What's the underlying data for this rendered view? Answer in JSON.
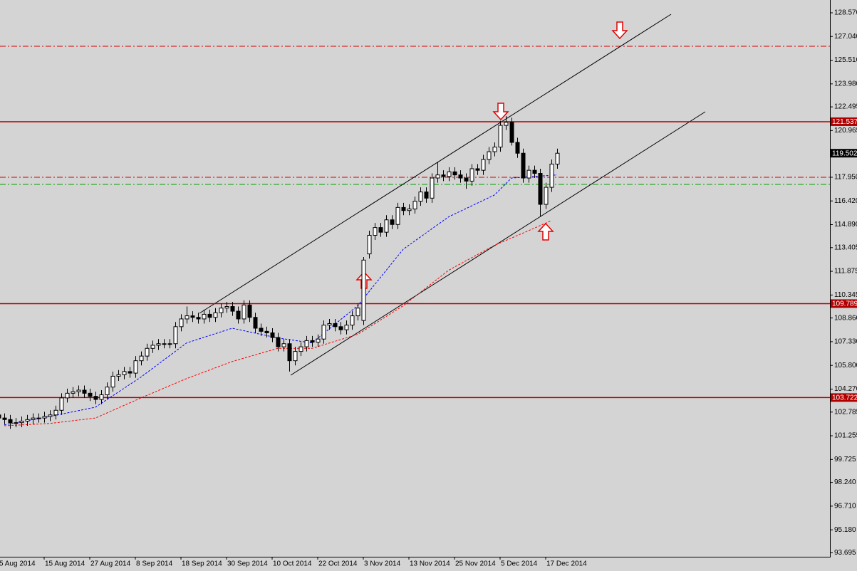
{
  "chart_data": {
    "type": "candlestick",
    "categories": [
      "5 Aug 2014",
      null,
      null,
      null,
      null,
      null,
      null,
      null,
      "15 Aug 2014",
      null,
      null,
      null,
      null,
      null,
      null,
      null,
      "27 Aug 2014",
      null,
      null,
      null,
      null,
      null,
      null,
      null,
      "8 Sep 2014",
      null,
      null,
      null,
      null,
      null,
      null,
      null,
      "18 Sep 2014",
      null,
      null,
      null,
      null,
      null,
      null,
      null,
      "30 Sep 2014",
      null,
      null,
      null,
      null,
      null,
      null,
      null,
      "10 Oct 2014",
      null,
      null,
      null,
      null,
      null,
      null,
      null,
      "22 Oct 2014",
      null,
      null,
      null,
      null,
      null,
      null,
      null,
      "3 Nov 2014",
      null,
      null,
      null,
      null,
      null,
      null,
      null,
      "13 Nov 2014",
      null,
      null,
      null,
      null,
      null,
      null,
      null,
      "25 Nov 2014",
      null,
      null,
      null,
      null,
      null,
      null,
      null,
      "5 Dec 2014",
      null,
      null,
      null,
      null,
      null,
      null,
      null,
      "17 Dec 2014",
      null,
      null
    ],
    "open": [
      102.6,
      102.4,
      102.3,
      102.1,
      102.1,
      102.2,
      102.3,
      102.4,
      102.4,
      102.5,
      102.6,
      102.9,
      103.7,
      104.0,
      104.1,
      104.2,
      104.0,
      103.8,
      103.6,
      103.9,
      104.4,
      105.1,
      105.2,
      105.4,
      105.3,
      106.1,
      106.4,
      106.9,
      107.1,
      107.2,
      107.2,
      107.2,
      108.3,
      108.8,
      109.0,
      108.9,
      108.8,
      109.1,
      108.9,
      109.2,
      109.5,
      109.6,
      109.3,
      108.8,
      109.7,
      108.9,
      108.2,
      108.0,
      107.9,
      107.6,
      107.0,
      107.2,
      106.1,
      106.7,
      107.0,
      107.4,
      107.3,
      107.5,
      108.4,
      108.5,
      108.3,
      108.1,
      108.4,
      109.0,
      108.7,
      113.0,
      114.2,
      114.7,
      114.4,
      115.2,
      114.9,
      116.0,
      115.8,
      115.9,
      116.4,
      117.0,
      116.6,
      117.9,
      118.1,
      118.0,
      118.3,
      118.1,
      117.9,
      117.7,
      118.5,
      118.4,
      119.1,
      119.6,
      119.9,
      121.3,
      121.5,
      120.2,
      119.5,
      117.9,
      118.4,
      118.2,
      116.2,
      117.3,
      118.8
    ],
    "high": [
      102.9,
      102.7,
      102.6,
      102.4,
      102.5,
      102.6,
      102.7,
      102.7,
      102.8,
      102.9,
      103.2,
      104.0,
      104.3,
      104.4,
      104.5,
      104.5,
      104.3,
      104.1,
      104.2,
      104.7,
      105.4,
      105.5,
      105.7,
      105.7,
      106.4,
      106.7,
      107.2,
      107.4,
      107.5,
      107.5,
      107.5,
      108.6,
      109.1,
      109.6,
      109.3,
      109.2,
      109.4,
      109.4,
      109.5,
      109.8,
      109.9,
      109.9,
      109.6,
      110.0,
      110.0,
      109.2,
      108.5,
      108.3,
      108.2,
      107.9,
      107.5,
      107.5,
      107.0,
      107.3,
      107.7,
      107.7,
      107.8,
      108.7,
      108.8,
      108.8,
      108.6,
      108.7,
      109.3,
      109.8,
      112.8,
      114.5,
      115.0,
      115.0,
      115.5,
      115.5,
      116.3,
      116.3,
      116.2,
      116.7,
      117.3,
      117.3,
      118.2,
      118.9,
      118.4,
      118.6,
      118.6,
      118.4,
      118.2,
      118.8,
      118.8,
      119.4,
      119.9,
      120.2,
      121.6,
      121.9,
      121.8,
      120.5,
      119.8,
      118.7,
      118.7,
      118.5,
      117.6,
      119.1,
      119.8
    ],
    "low": [
      102.1,
      102.0,
      101.7,
      101.8,
      101.8,
      101.9,
      102.0,
      102.1,
      102.1,
      102.2,
      102.3,
      102.6,
      103.4,
      103.7,
      103.8,
      103.7,
      103.5,
      103.3,
      103.3,
      103.6,
      104.1,
      104.8,
      104.9,
      105.0,
      105.0,
      105.8,
      106.1,
      106.6,
      106.8,
      106.9,
      106.9,
      106.9,
      108.0,
      108.5,
      108.6,
      108.5,
      108.5,
      108.6,
      108.6,
      108.9,
      109.2,
      109.0,
      108.5,
      108.5,
      108.6,
      107.9,
      107.7,
      107.6,
      107.3,
      106.7,
      106.7,
      105.4,
      105.8,
      106.4,
      106.7,
      107.0,
      107.0,
      107.2,
      108.1,
      108.0,
      107.8,
      107.8,
      108.1,
      108.7,
      108.4,
      112.7,
      113.9,
      114.1,
      114.1,
      114.6,
      114.6,
      115.5,
      115.5,
      115.6,
      116.1,
      116.3,
      116.3,
      117.6,
      117.7,
      117.7,
      117.8,
      117.6,
      117.2,
      117.4,
      118.1,
      118.1,
      118.8,
      119.3,
      119.6,
      121.0,
      120.0,
      119.2,
      117.6,
      117.6,
      117.9,
      115.4,
      115.9,
      117.0,
      118.5
    ],
    "close": [
      102.4,
      102.3,
      102.1,
      102.1,
      102.2,
      102.3,
      102.4,
      102.4,
      102.5,
      102.6,
      102.9,
      103.7,
      104.0,
      104.1,
      104.2,
      104.0,
      103.8,
      103.6,
      103.9,
      104.4,
      105.1,
      105.2,
      105.4,
      105.3,
      106.1,
      106.4,
      106.9,
      107.1,
      107.2,
      107.2,
      107.2,
      108.3,
      108.8,
      109.0,
      108.9,
      108.8,
      109.1,
      108.9,
      109.2,
      109.5,
      109.6,
      109.3,
      108.8,
      109.7,
      108.9,
      108.2,
      108.0,
      107.9,
      107.6,
      107.0,
      107.2,
      106.1,
      106.7,
      107.0,
      107.4,
      107.3,
      107.5,
      108.4,
      108.5,
      108.3,
      108.1,
      108.4,
      109.0,
      109.5,
      112.6,
      114.2,
      114.7,
      114.4,
      115.2,
      114.9,
      116.0,
      115.8,
      115.9,
      116.4,
      117.0,
      116.6,
      117.9,
      118.1,
      118.0,
      118.3,
      118.1,
      117.9,
      117.7,
      118.5,
      118.4,
      119.1,
      119.6,
      119.9,
      121.3,
      121.5,
      120.2,
      119.5,
      117.9,
      118.4,
      118.2,
      116.2,
      117.3,
      118.8,
      119.5
    ],
    "up_color": "#ffffff",
    "down_color": "#000000",
    "overlays": [
      {
        "color": "#0000ff",
        "x": [
          1,
          9,
          17,
          25,
          33,
          41,
          49,
          55,
          63,
          71,
          79,
          87,
          90,
          98
        ],
        "values": [
          101.96,
          102.5,
          103.1,
          105.05,
          107.25,
          108.2,
          107.57,
          107.25,
          109.65,
          113.3,
          115.4,
          116.8,
          117.9,
          118.1
        ]
      },
      {
        "color": "#ff0000",
        "x": [
          1,
          9,
          17,
          25,
          33,
          41,
          49,
          55,
          63,
          71,
          79,
          87,
          93,
          97
        ],
        "values": [
          101.9,
          102.05,
          102.4,
          103.7,
          104.95,
          106.05,
          106.9,
          106.9,
          107.8,
          109.65,
          111.95,
          113.55,
          114.5,
          115.15
        ]
      }
    ],
    "levels": [
      {
        "value": 121.537,
        "label": "121.537",
        "color": "#b00000"
      },
      {
        "value": 109.789,
        "label": "109.789",
        "color": "#b00000"
      },
      {
        "value": 103.722,
        "label": "103.722",
        "color": "#b00000"
      }
    ],
    "last_price": {
      "value": 119.502,
      "label": "119.502",
      "color": "#000000"
    },
    "ylim": [
      93.44,
      129.397
    ],
    "yticks": [
      {
        "value": 128.57,
        "label": "128.570"
      },
      {
        "value": 127.04,
        "label": "127.040"
      },
      {
        "value": 125.51,
        "label": "125.510"
      },
      {
        "value": 123.98,
        "label": "123.980"
      },
      {
        "value": 122.495,
        "label": "122.495"
      },
      {
        "value": 120.965,
        "label": "120.965"
      },
      {
        "value": 117.95,
        "label": "117.950"
      },
      {
        "value": 116.42,
        "label": "116.420"
      },
      {
        "value": 114.89,
        "label": "114.890"
      },
      {
        "value": 113.405,
        "label": "113.405"
      },
      {
        "value": 111.875,
        "label": "111.875"
      },
      {
        "value": 110.345,
        "label": "110.345"
      },
      {
        "value": 108.86,
        "label": "108.860"
      },
      {
        "value": 107.33,
        "label": "107.330"
      },
      {
        "value": 105.8,
        "label": "105.800"
      },
      {
        "value": 104.27,
        "label": "104.270"
      },
      {
        "value": 102.785,
        "label": "102.785"
      },
      {
        "value": 101.255,
        "label": "101.255"
      },
      {
        "value": 99.725,
        "label": "99.725"
      },
      {
        "value": 98.24,
        "label": "98.240"
      },
      {
        "value": 96.71,
        "label": "96.710"
      },
      {
        "value": 95.18,
        "label": "95.180"
      },
      {
        "value": 93.695,
        "label": "93.695"
      }
    ]
  }
}
